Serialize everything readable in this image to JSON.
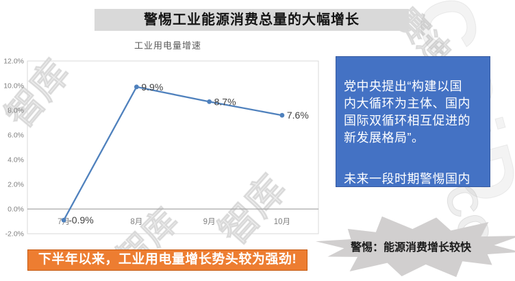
{
  "header": {
    "title": "警惕工业能源消费总量的大幅增长"
  },
  "chart_data": {
    "type": "line",
    "title": "工业用电量增速",
    "categories": [
      "7月",
      "8月",
      "9月",
      "10月"
    ],
    "series": [
      {
        "name": "工业用电量增速",
        "values": [
          -0.9,
          9.9,
          8.7,
          7.6
        ]
      }
    ],
    "data_labels": [
      "-0.9%",
      "9.9%",
      "8.7%",
      "7.6%"
    ],
    "ylim": [
      -2,
      12
    ],
    "ytick_labels": [
      "-2.0%",
      "0.0%",
      "2.0%",
      "4.0%",
      "6.0%",
      "8.0%",
      "10.0%",
      "12.0%"
    ],
    "xlabel": "",
    "ylabel": "",
    "legend": "none",
    "grid": "zero line only",
    "line_color": "#4f81bd"
  },
  "commentary": {
    "paragraph1": "党中央提出“构建以国\n内大循环为主体、国内\n国际双循环相互促进的\n新发展格局”。",
    "paragraph2": "未来一段时期警惕国内\n大循环造成我国更大的\n能源消耗。"
  },
  "banner": {
    "text": "下半年以来，工业用电量增长势头较为强劲!"
  },
  "callout": {
    "text": "警惕：能源消费增长较快"
  },
  "watermarks": [
    "智库",
    "智库",
    "CCiD",
    "赛迪",
    "智库",
    "CC"
  ],
  "colors": {
    "title_bar_gray": "#d9d9d9",
    "commentary_blue": "#4472c4",
    "banner_orange": "#ed7d31",
    "line_blue": "#4f81bd",
    "starburst_gray": "#d1cfcf",
    "axis_text_gray": "#7f7f7f"
  }
}
